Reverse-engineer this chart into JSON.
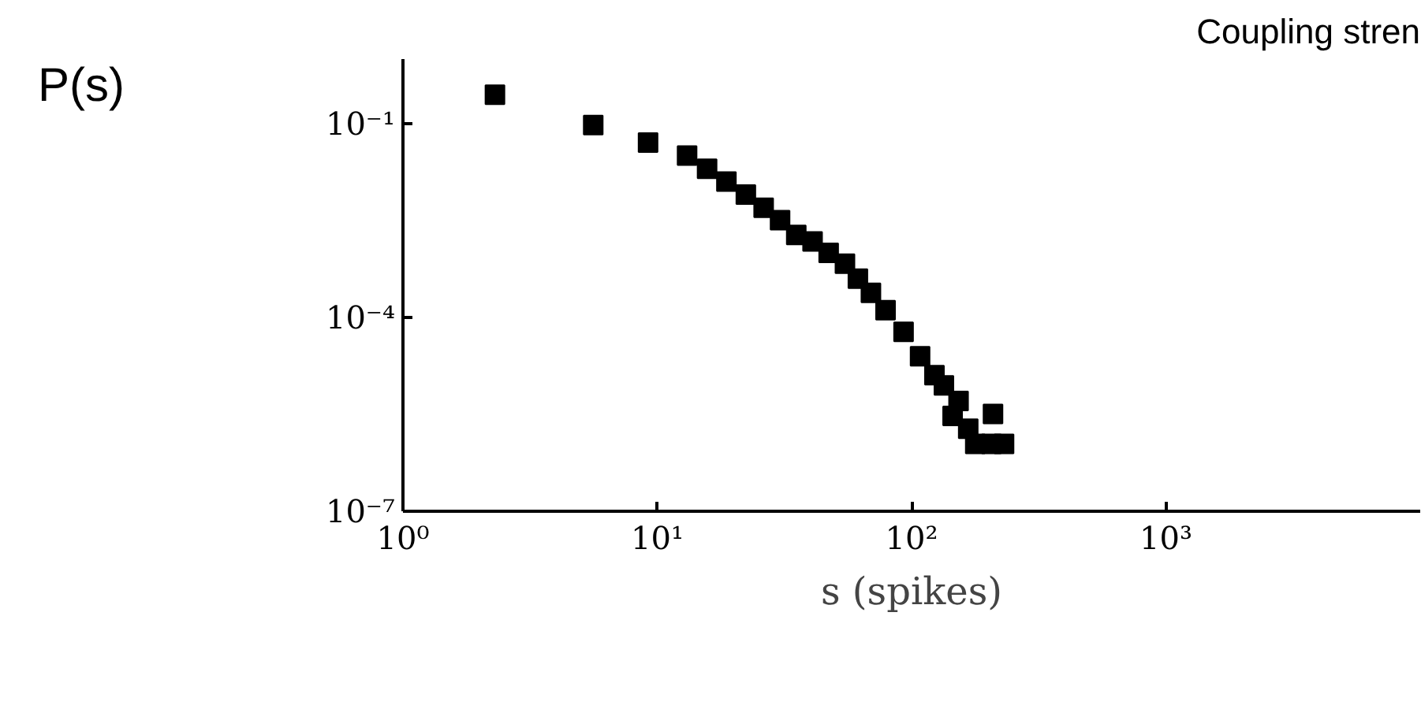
{
  "chart_data": {
    "type": "scatter",
    "title": "Coupling stren",
    "xlabel": "s (spikes)",
    "ylabel": "P(s)",
    "log": "xy",
    "grid": false,
    "marker": "square",
    "x": [
      2.3,
      5.6,
      9.2,
      13.1,
      15.7,
      18.7,
      22.3,
      26.2,
      30.4,
      35.2,
      40.8,
      47.2,
      54.7,
      61.5,
      69.2,
      79,
      93,
      108,
      123,
      134,
      153,
      145,
      209,
      167,
      178,
      206,
      231
    ],
    "series": [
      {
        "color": "#000000",
        "values": [
          0.28,
          0.095,
          0.051,
          0.032,
          0.02,
          0.0127,
          0.008,
          0.005,
          0.0032,
          0.0019,
          0.0015,
          0.001,
          0.00068,
          0.0004,
          0.00024,
          0.00013,
          6e-05,
          2.5e-05,
          1.28e-05,
          8.9e-06,
          5.1e-06,
          3e-06,
          3.2e-06,
          1.9e-06,
          1.1e-06,
          1.1e-06,
          1.1e-06
        ]
      }
    ],
    "xlim": [
      1,
      10000
    ],
    "ylim": [
      1e-07,
      1
    ],
    "xticks": [
      {
        "value": 1,
        "label": "10⁰"
      },
      {
        "value": 10,
        "label": "10¹"
      },
      {
        "value": 100,
        "label": "10²"
      },
      {
        "value": 1000,
        "label": "10³"
      }
    ],
    "yticks": [
      {
        "value": 1e-07,
        "label": "10⁻⁷"
      },
      {
        "value": 0.0001,
        "label": "10⁻⁴"
      },
      {
        "value": 0.1,
        "label": "10⁻¹"
      }
    ]
  }
}
